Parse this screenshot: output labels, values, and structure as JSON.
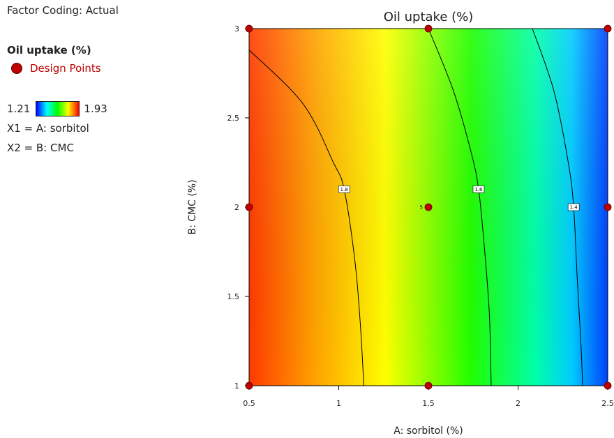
{
  "legend": {
    "factor_coding": "Factor Coding: Actual",
    "response_label": "Oil uptake (%)",
    "design_points_label": "Design Points",
    "scale_min": "1.21",
    "scale_max": "1.93",
    "x1_label": "X1 = A: sorbitol",
    "x2_label": "X2 = B: CMC"
  },
  "colors": {
    "design_point": "#c00000",
    "contour_line": "#000000"
  },
  "chart_data": {
    "type": "heatmap",
    "subtype": "contour",
    "title": "Oil uptake (%)",
    "xlabel": "A: sorbitol (%)",
    "ylabel": "B: CMC (%)",
    "xlim": [
      0.5,
      2.5
    ],
    "ylim": [
      1,
      3
    ],
    "x_ticks": [
      "0.5",
      "1",
      "1.5",
      "2",
      "2.5"
    ],
    "y_ticks": [
      "1",
      "1.5",
      "2",
      "2.5",
      "3"
    ],
    "color_scale": {
      "min": 1.21,
      "max": 1.93,
      "colors": [
        "#0000ff",
        "#00ffff",
        "#00ff00",
        "#ffff00",
        "#ff0000"
      ]
    },
    "contours": [
      {
        "level": "1.8",
        "points": [
          [
            0.5,
            2.88
          ],
          [
            0.8,
            2.58
          ],
          [
            0.97,
            2.25
          ],
          [
            1.03,
            2.1
          ],
          [
            1.09,
            1.7
          ],
          [
            1.12,
            1.35
          ],
          [
            1.14,
            1.0
          ]
        ]
      },
      {
        "level": "1.6",
        "points": [
          [
            1.5,
            3.0
          ],
          [
            1.64,
            2.65
          ],
          [
            1.74,
            2.3
          ],
          [
            1.78,
            2.1
          ],
          [
            1.81,
            1.8
          ],
          [
            1.84,
            1.4
          ],
          [
            1.85,
            1.0
          ]
        ]
      },
      {
        "level": "1.4",
        "points": [
          [
            2.08,
            3.0
          ],
          [
            2.2,
            2.65
          ],
          [
            2.28,
            2.25
          ],
          [
            2.31,
            2.0
          ],
          [
            2.33,
            1.6
          ],
          [
            2.35,
            1.25
          ],
          [
            2.36,
            1.0
          ]
        ]
      }
    ],
    "design_points": [
      {
        "x": 0.5,
        "y": 3,
        "label": ""
      },
      {
        "x": 1.5,
        "y": 3,
        "label": ""
      },
      {
        "x": 2.5,
        "y": 3,
        "label": ""
      },
      {
        "x": 0.5,
        "y": 2,
        "label": ""
      },
      {
        "x": 1.5,
        "y": 2,
        "label": "5"
      },
      {
        "x": 2.5,
        "y": 2,
        "label": ""
      },
      {
        "x": 0.5,
        "y": 1,
        "label": ""
      },
      {
        "x": 1.5,
        "y": 1,
        "label": ""
      },
      {
        "x": 2.5,
        "y": 1,
        "label": ""
      }
    ]
  }
}
